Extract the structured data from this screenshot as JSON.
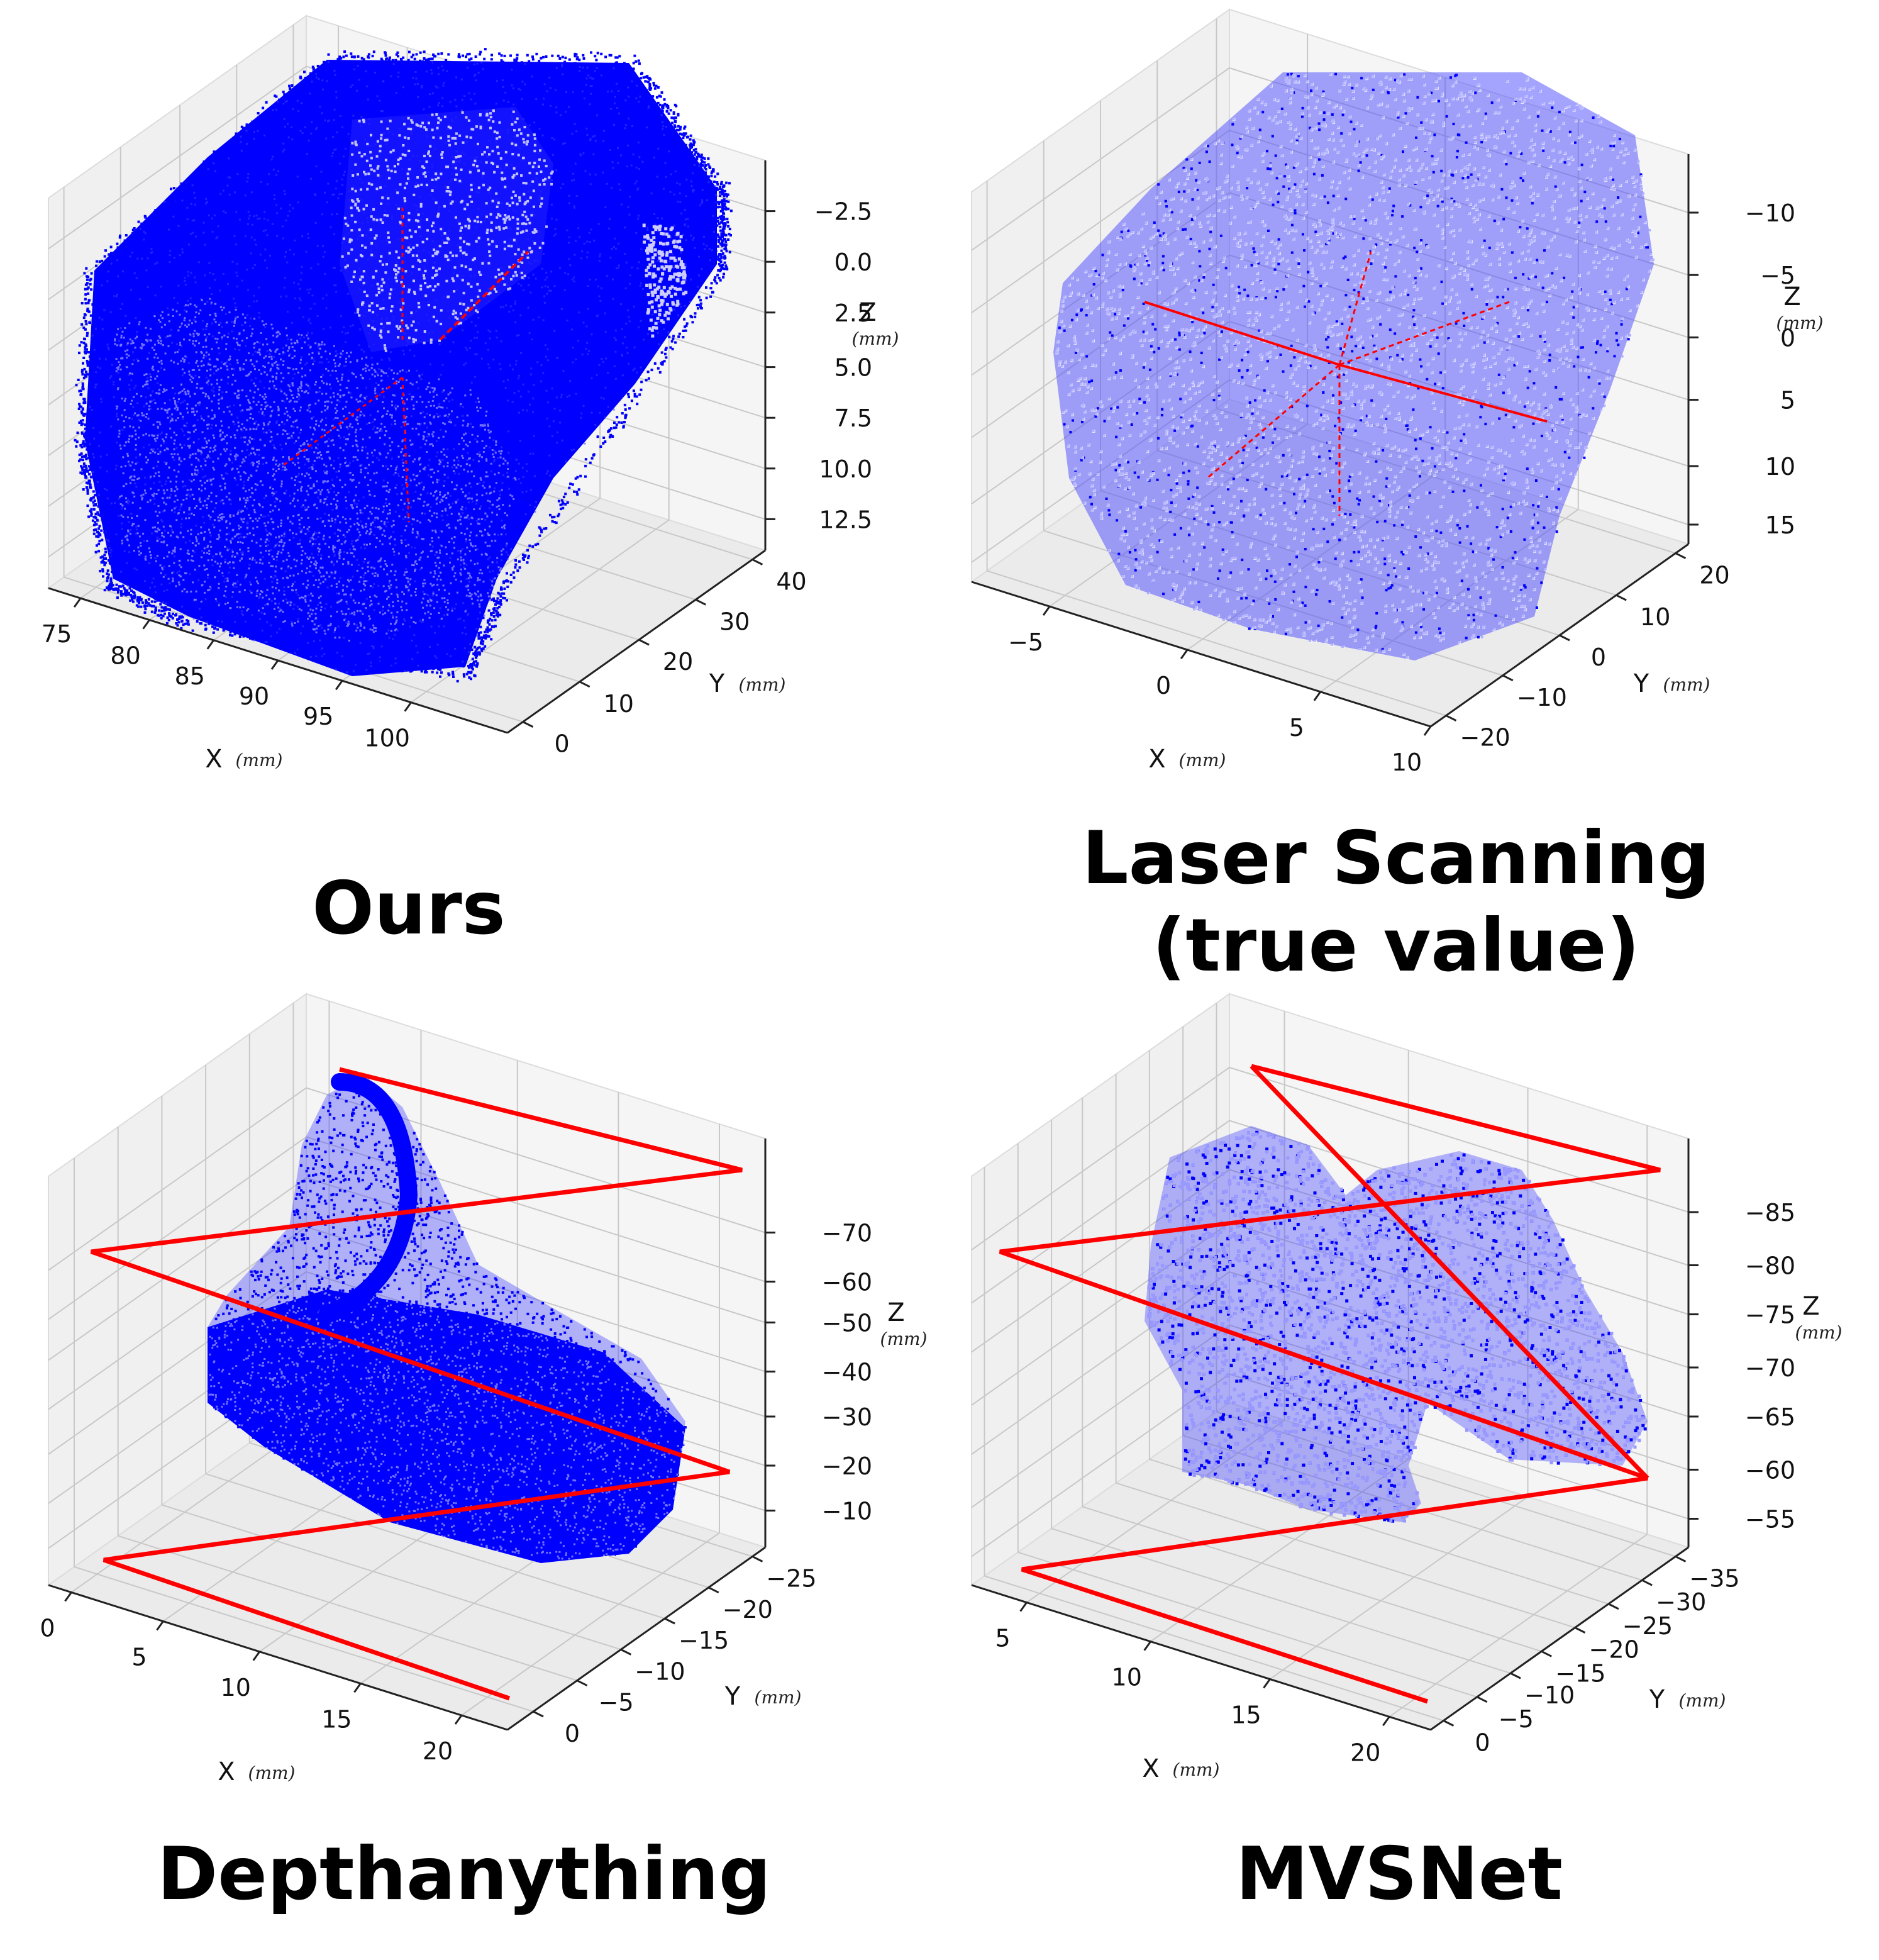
{
  "figure": {
    "point_color": "#0000ff",
    "line_color": "#ff0000",
    "panel_color": "#f2f2f2",
    "grid_color": "#c8c8c8"
  },
  "chart_data": [
    {
      "type": "scatter",
      "subtype": "3d-point-cloud",
      "caption": "Ours",
      "x_label": "X",
      "y_label": "Y",
      "z_label": "Z",
      "unit": "mm",
      "x_ticks": [
        "75",
        "80",
        "85",
        "90",
        "95",
        "100"
      ],
      "y_ticks": [
        "0",
        "10",
        "20",
        "30",
        "40"
      ],
      "z_ticks": [
        "12.5",
        "10.0",
        "7.5",
        "5.0",
        "2.5",
        "0.0",
        "−2.5"
      ],
      "xlim": [
        72,
        103
      ],
      "ylim": [
        -3,
        47
      ],
      "zlim": [
        -4.5,
        14.5
      ],
      "shape": "rounded box, dense point cloud with dark cavity opening on front face",
      "frame_lines": "short red axis segments inside the cloud"
    },
    {
      "type": "scatter",
      "subtype": "3d-point-cloud",
      "caption_lines": [
        "Laser Scanning",
        "(true value)"
      ],
      "x_label": "X",
      "y_label": "Y",
      "z_label": "Z",
      "unit": "mm",
      "x_ticks": [
        "−5",
        "0",
        "5",
        "10"
      ],
      "y_ticks": [
        "−20",
        "−10",
        "0",
        "10",
        "20"
      ],
      "z_ticks": [
        "15",
        "10",
        "5",
        "0",
        "−5",
        "−10"
      ],
      "xlim": [
        -8,
        11
      ],
      "ylim": [
        -22,
        24
      ],
      "zlim": [
        -12,
        17
      ],
      "shape": "sparse rounded cube point cloud",
      "frame_lines": "red axis cross through the centre"
    },
    {
      "type": "scatter",
      "subtype": "3d-point-cloud",
      "caption": "Depthanything",
      "x_label": "X",
      "y_label": "Y",
      "z_label": "Z",
      "unit": "mm",
      "x_ticks": [
        "0",
        "5",
        "10",
        "15",
        "20"
      ],
      "y_ticks": [
        "0",
        "−5",
        "−10",
        "−15",
        "−20",
        "−25"
      ],
      "z_ticks": [
        "−10",
        "−20",
        "−30",
        "−40",
        "−50",
        "−60",
        "−70"
      ],
      "xlim": [
        -1,
        23
      ],
      "ylim": [
        -26,
        2
      ],
      "zlim": [
        -78,
        -3
      ],
      "shape": "distorted cone / loop shaped point cloud",
      "frame_lines": "red zig-zag camera frustum outline"
    },
    {
      "type": "scatter",
      "subtype": "3d-point-cloud",
      "caption": "MVSNet",
      "x_label": "X",
      "y_label": "Y",
      "z_label": "Z",
      "unit": "mm",
      "x_ticks": [
        "5",
        "10",
        "15",
        "20"
      ],
      "y_ticks": [
        "0",
        "−5",
        "−10",
        "−15",
        "−20",
        "−25",
        "−30",
        "−35"
      ],
      "z_ticks": [
        "−55",
        "−60",
        "−65",
        "−70",
        "−75",
        "−80",
        "−85"
      ],
      "xlim": [
        2,
        24
      ],
      "ylim": [
        -37,
        2
      ],
      "zlim": [
        -87,
        -53
      ],
      "shape": "noisy irregular two-lobed point cloud",
      "frame_lines": "red zig-zag camera frustum outline"
    }
  ]
}
